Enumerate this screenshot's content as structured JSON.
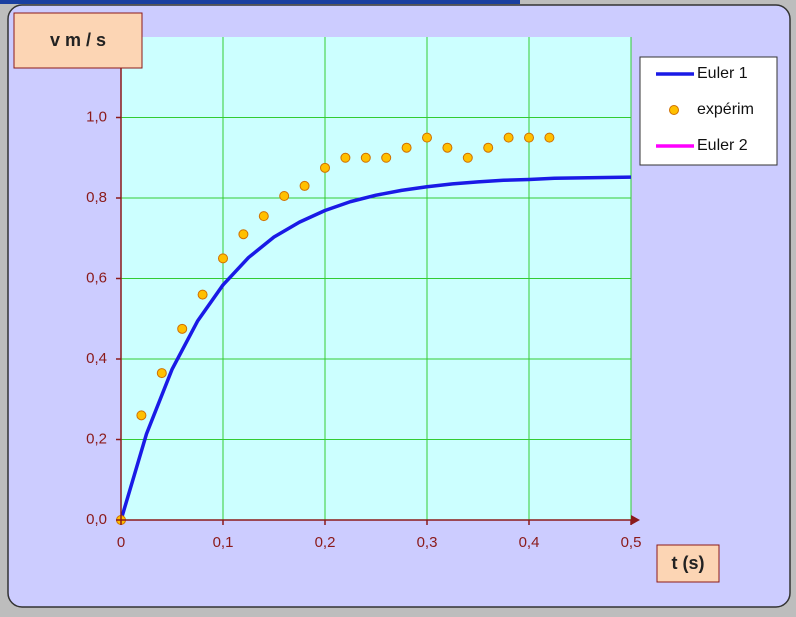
{
  "chart_data": {
    "type": "line_scatter",
    "y_label": "v  m / s",
    "x_label": "t  (s)",
    "xlim": [
      0,
      0.5
    ],
    "ylim": [
      0,
      1.2
    ],
    "xticks": [
      0,
      {
        "value": 0.1,
        "label": "0,1"
      },
      {
        "value": 0.2,
        "label": "0,2"
      },
      {
        "value": 0.3,
        "label": "0,3"
      },
      {
        "value": 0.4,
        "label": "0,4"
      },
      {
        "value": 0.5,
        "label": "0,5"
      }
    ],
    "yticks": [
      {
        "value": 0,
        "label": "0,0"
      },
      {
        "value": 0.2,
        "label": "0,2"
      },
      {
        "value": 0.4,
        "label": "0,4"
      },
      {
        "value": 0.6,
        "label": "0,6"
      },
      {
        "value": 0.8,
        "label": "0,8"
      },
      {
        "value": 1.0,
        "label": "1,0"
      }
    ],
    "grid": true,
    "legend": "upper right",
    "series": [
      {
        "name": "Euler 1",
        "kind": "line",
        "color": "#1a1ae6",
        "x": [
          0,
          0.025,
          0.05,
          0.075,
          0.1,
          0.125,
          0.15,
          0.175,
          0.2,
          0.225,
          0.25,
          0.275,
          0.3,
          0.325,
          0.35,
          0.375,
          0.4,
          0.425,
          0.45,
          0.475,
          0.5
        ],
        "values": [
          0,
          0.214,
          0.374,
          0.494,
          0.584,
          0.652,
          0.703,
          0.74,
          0.769,
          0.791,
          0.807,
          0.819,
          0.828,
          0.835,
          0.84,
          0.844,
          0.846,
          0.849,
          0.85,
          0.851,
          0.852
        ]
      },
      {
        "name": "expérim",
        "kind": "scatter",
        "color": "#ffc000",
        "x": [
          0,
          0.02,
          0.04,
          0.06,
          0.08,
          0.1,
          0.12,
          0.14,
          0.16,
          0.18,
          0.2,
          0.22,
          0.24,
          0.26,
          0.28,
          0.3,
          0.32,
          0.34,
          0.36,
          0.38,
          0.4,
          0.42
        ],
        "values": [
          0,
          0.26,
          0.365,
          0.475,
          0.56,
          0.65,
          0.71,
          0.755,
          0.805,
          0.83,
          0.875,
          0.9,
          0.9,
          0.9,
          0.925,
          0.95,
          0.925,
          0.9,
          0.925,
          0.95,
          0.95,
          0.95
        ]
      },
      {
        "name": "Euler 2",
        "kind": "line",
        "color": "#ff00ff",
        "x": [],
        "values": []
      }
    ]
  }
}
